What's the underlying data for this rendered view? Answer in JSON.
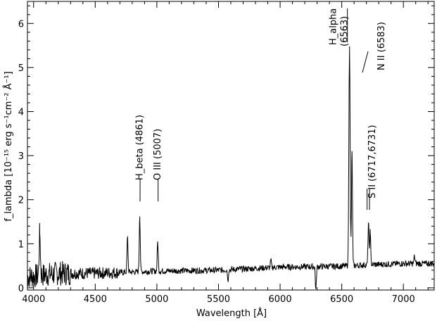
{
  "chart_data": {
    "type": "line",
    "xlabel": "Wavelength [Å]",
    "ylabel": "f_lambda [10⁻¹⁵ erg s⁻¹cm⁻² Å⁻¹]",
    "xlim": [
      3950,
      7250
    ],
    "ylim": [
      -0.05,
      6.5
    ],
    "x_ticks": [
      4000,
      4500,
      5000,
      5500,
      6000,
      6500,
      7000
    ],
    "y_ticks": [
      0,
      1,
      2,
      3,
      4,
      5,
      6
    ],
    "grid": false,
    "series": [
      {
        "continuum": [
          [
            3950,
            0.25
          ],
          [
            4200,
            0.33
          ],
          [
            4500,
            0.33
          ],
          [
            5000,
            0.38
          ],
          [
            5500,
            0.4
          ],
          [
            6000,
            0.47
          ],
          [
            6500,
            0.49
          ],
          [
            6700,
            0.52
          ],
          [
            7000,
            0.55
          ],
          [
            7250,
            0.55
          ]
        ],
        "peaks": [
          {
            "x": 4050,
            "y": 1.22,
            "w": 5
          },
          {
            "x": 4762,
            "y": 1.15,
            "w": 4
          },
          {
            "x": 4861,
            "y": 1.62,
            "w": 4
          },
          {
            "x": 5007,
            "y": 1.05,
            "w": 4
          },
          {
            "x": 5925,
            "y": 0.62,
            "w": 4
          },
          {
            "x": 6563,
            "y": 5.48,
            "w": 5
          },
          {
            "x": 6583,
            "y": 3.1,
            "w": 4
          },
          {
            "x": 6717,
            "y": 1.48,
            "w": 4
          },
          {
            "x": 6731,
            "y": 1.28,
            "w": 4
          },
          {
            "x": 7090,
            "y": 0.72,
            "w": 4
          }
        ],
        "dips": [
          {
            "x": 6290,
            "y": -0.05,
            "w": 4
          },
          {
            "x": 5577,
            "y": 0.12,
            "w": 3
          }
        ]
      }
    ],
    "annotations": [
      {
        "text": "H_beta (4861)",
        "x": 4861
      },
      {
        "text": "O III (5007)",
        "x": 5007
      },
      {
        "text": "H_alpha",
        "x": 6563
      },
      {
        "text": "(6563)",
        "x": 6563
      },
      {
        "text": "N II (6583)",
        "x": 6583
      },
      {
        "text": "S II (6717,6731)",
        "x": 6724
      }
    ]
  }
}
